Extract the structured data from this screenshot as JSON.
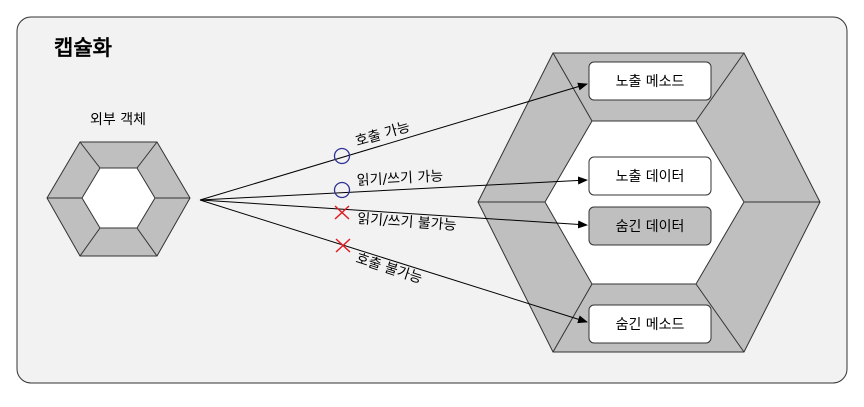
{
  "diagram": {
    "title": "캡슐화",
    "external_object_label": "외부 객체",
    "members": {
      "exposed_method": "노출 메소드",
      "exposed_data": "노출 데이터",
      "hidden_data": "숨긴 데이터",
      "hidden_method": "숨긴 메소드"
    },
    "arrows": {
      "call_allowed": "호출 가능",
      "rw_allowed": "읽기/쓰기 가능",
      "rw_denied": "읽기/쓰기 불가능",
      "call_denied": "호출 불가능"
    },
    "colors": {
      "panel": "#f2f2f2",
      "hex_gray": "#bfbfbf",
      "allowed_mark": "#2e3192",
      "denied_mark": "#e11b22"
    }
  }
}
